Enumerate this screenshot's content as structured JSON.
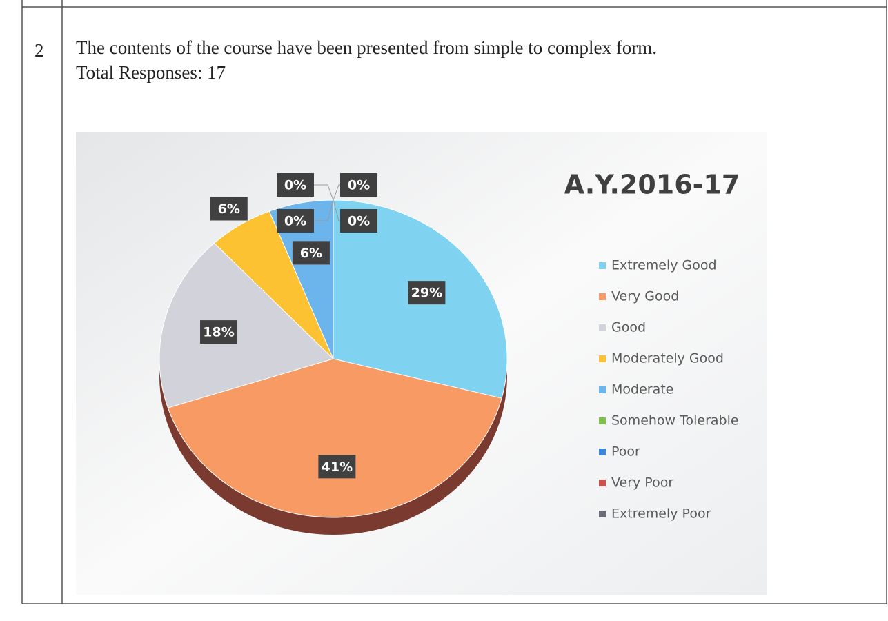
{
  "row": {
    "number": "2",
    "question": "The contents of the course have been presented from simple to complex form.",
    "total": "Total Responses: 17"
  },
  "chart_data": {
    "type": "pie",
    "title": "A.Y.2016-17",
    "categories": [
      "Extremely Good",
      "Very Good",
      "Good",
      "Moderately Good",
      "Moderate",
      "Somehow Tolerable",
      "Poor",
      "Very Poor",
      "Extremely Poor"
    ],
    "values": [
      29,
      41,
      18,
      6,
      6,
      0,
      0,
      0,
      0
    ],
    "value_labels": [
      "29%",
      "41%",
      "18%",
      "6%",
      "6%",
      "0%",
      "0%",
      "0%",
      "0%"
    ],
    "colors": [
      "#7fd3f0",
      "#f79a64",
      "#d2d2da",
      "#fcc232",
      "#6cb4ec",
      "#7cc04a",
      "#3b86d8",
      "#c8534c",
      "#6b6b7b"
    ]
  }
}
